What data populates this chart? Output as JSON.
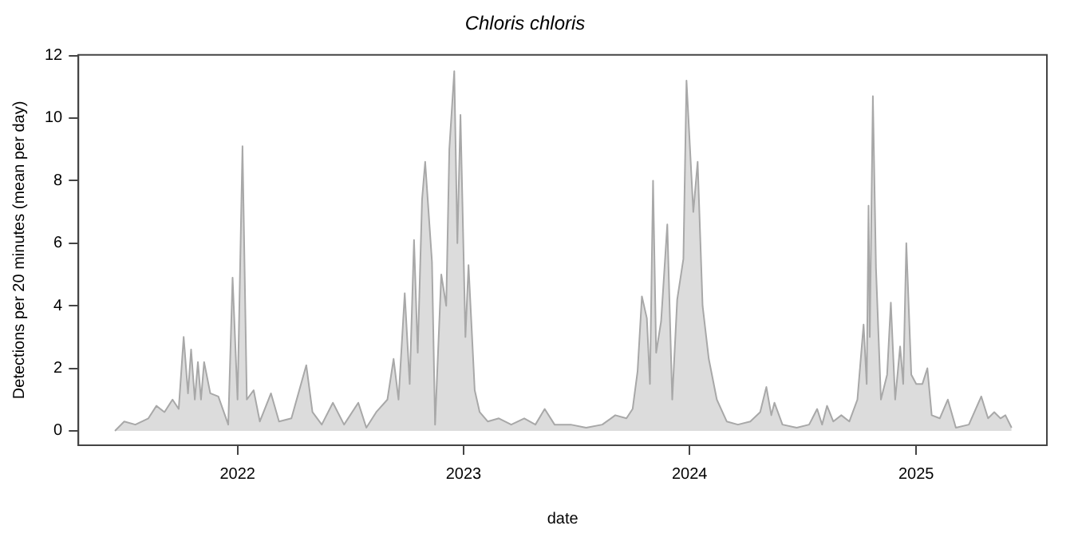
{
  "chart_data": {
    "type": "area",
    "title": "Chloris chloris",
    "xlabel": "date",
    "ylabel": "Detections per 20 minutes (mean per day)",
    "x": [
      "2021-06-17",
      "2021-07-02",
      "2021-07-20",
      "2021-08-10",
      "2021-08-23",
      "2021-09-05",
      "2021-09-18",
      "2021-09-28",
      "2021-10-06",
      "2021-10-13",
      "2021-10-18",
      "2021-10-24",
      "2021-10-29",
      "2021-11-03",
      "2021-11-08",
      "2021-11-18",
      "2021-12-01",
      "2021-12-17",
      "2021-12-24",
      "2022-01-01",
      "2022-01-09",
      "2022-01-16",
      "2022-01-27",
      "2022-02-06",
      "2022-02-24",
      "2022-03-09",
      "2022-03-29",
      "2022-04-22",
      "2022-05-02",
      "2022-05-17",
      "2022-06-04",
      "2022-06-22",
      "2022-07-15",
      "2022-07-28",
      "2022-08-13",
      "2022-08-31",
      "2022-09-10",
      "2022-09-18",
      "2022-09-28",
      "2022-10-06",
      "2022-10-13",
      "2022-10-19",
      "2022-10-26",
      "2022-10-31",
      "2022-11-11",
      "2022-11-16",
      "2022-11-26",
      "2022-12-04",
      "2022-12-09",
      "2022-12-17",
      "2022-12-22",
      "2022-12-27",
      "2023-01-04",
      "2023-01-09",
      "2023-01-19",
      "2023-01-27",
      "2023-02-09",
      "2023-02-27",
      "2023-03-19",
      "2023-04-09",
      "2023-04-27",
      "2023-05-12",
      "2023-05-28",
      "2023-06-23",
      "2023-07-18",
      "2023-08-13",
      "2023-09-03",
      "2023-09-21",
      "2023-10-01",
      "2023-10-09",
      "2023-10-16",
      "2023-10-24",
      "2023-10-29",
      "2023-11-03",
      "2023-11-08",
      "2023-11-16",
      "2023-11-26",
      "2023-12-04",
      "2023-12-12",
      "2023-12-22",
      "2023-12-27",
      "2024-01-07",
      "2024-01-14",
      "2024-01-22",
      "2024-02-01",
      "2024-02-14",
      "2024-03-01",
      "2024-03-19",
      "2024-04-08",
      "2024-04-24",
      "2024-05-04",
      "2024-05-12",
      "2024-05-17",
      "2024-05-30",
      "2024-06-22",
      "2024-07-12",
      "2024-07-25",
      "2024-08-02",
      "2024-08-10",
      "2024-08-20",
      "2024-09-02",
      "2024-09-15",
      "2024-09-28",
      "2024-10-08",
      "2024-10-13",
      "2024-10-16",
      "2024-10-18",
      "2024-10-23",
      "2024-10-28",
      "2024-11-05",
      "2024-11-15",
      "2024-11-21",
      "2024-11-28",
      "2024-12-06",
      "2024-12-11",
      "2024-12-16",
      "2024-12-24",
      "2025-01-01",
      "2025-01-11",
      "2025-01-19",
      "2025-01-26",
      "2025-02-08",
      "2025-02-21",
      "2025-03-06",
      "2025-03-27",
      "2025-04-16",
      "2025-04-27",
      "2025-05-07",
      "2025-05-17",
      "2025-05-25",
      "2025-06-04"
    ],
    "series": [
      {
        "color": "#a8a8a8",
        "values": [
          0,
          0.3,
          0.2,
          0.4,
          0.8,
          0.6,
          1.0,
          0.7,
          3.0,
          1.2,
          2.6,
          1.0,
          2.2,
          1.0,
          2.2,
          1.2,
          1.1,
          0.2,
          4.9,
          1.0,
          9.1,
          1.0,
          1.3,
          0.3,
          1.2,
          0.3,
          0.4,
          2.1,
          0.6,
          0.2,
          0.9,
          0.2,
          0.9,
          0.1,
          0.6,
          1.0,
          2.3,
          1.0,
          4.4,
          1.5,
          6.1,
          2.5,
          7.4,
          8.6,
          5.4,
          0.2,
          5.0,
          4.0,
          9.0,
          11.5,
          6.0,
          10.1,
          3.0,
          5.3,
          1.3,
          0.6,
          0.3,
          0.4,
          0.2,
          0.4,
          0.2,
          0.7,
          0.2,
          0.2,
          0.1,
          0.2,
          0.5,
          0.4,
          0.7,
          1.9,
          4.3,
          3.6,
          1.5,
          8.0,
          2.5,
          3.5,
          6.6,
          1.0,
          4.2,
          5.5,
          11.2,
          7.0,
          8.6,
          4.0,
          2.3,
          1.0,
          0.3,
          0.2,
          0.3,
          0.6,
          1.4,
          0.5,
          0.9,
          0.2,
          0.1,
          0.2,
          0.7,
          0.2,
          0.8,
          0.3,
          0.5,
          0.3,
          1.0,
          3.4,
          1.5,
          7.2,
          3.0,
          10.7,
          5.2,
          1.0,
          1.8,
          4.1,
          1.0,
          2.7,
          1.5,
          6.0,
          1.8,
          1.5,
          1.5,
          2.0,
          0.5,
          0.4,
          1.0,
          0.1,
          0.2,
          1.1,
          0.4,
          0.6,
          0.4,
          0.5,
          0.1
        ]
      }
    ],
    "xlim": [
      "2021-04-19",
      "2025-07-31"
    ],
    "xticks": [
      "2022",
      "2023",
      "2024",
      "2025"
    ],
    "ylim": [
      -0.46,
      12.02
    ],
    "yticks": [
      0,
      2,
      4,
      6,
      8,
      10,
      12
    ]
  }
}
